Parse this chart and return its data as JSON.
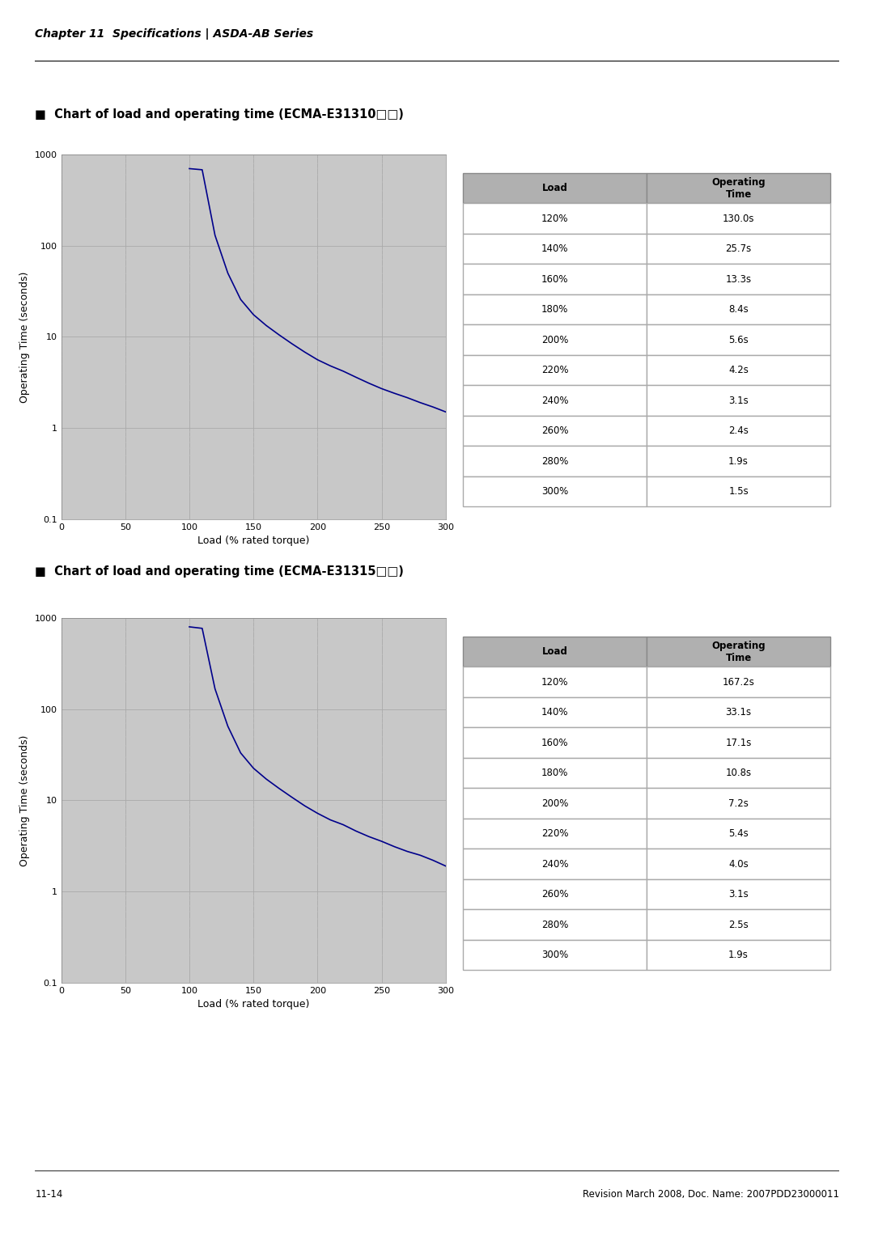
{
  "chapter_header": "Chapter 11  Specifications | ASDA-AB Series",
  "footer_left": "11-14",
  "footer_right": "Revision March 2008, Doc. Name: 2007PDD23000011",
  "chart1_title": "Chart of load and operating time (ECMA-E31310□□)",
  "chart1_xlabel": "Load (% rated torque)",
  "chart1_ylabel": "Operating Time (seconds)",
  "chart1_table_loads": [
    "120%",
    "140%",
    "160%",
    "180%",
    "200%",
    "220%",
    "240%",
    "260%",
    "280%",
    "300%"
  ],
  "chart1_table_times": [
    "130.0s",
    "25.7s",
    "13.3s",
    "8.4s",
    "5.6s",
    "4.2s",
    "3.1s",
    "2.4s",
    "1.9s",
    "1.5s"
  ],
  "chart1_x": [
    100,
    110,
    120,
    130,
    140,
    150,
    160,
    170,
    180,
    190,
    200,
    210,
    220,
    230,
    240,
    250,
    260,
    270,
    280,
    290,
    300
  ],
  "chart1_y": [
    700,
    680,
    130.0,
    50.0,
    25.7,
    17.5,
    13.3,
    10.5,
    8.4,
    6.8,
    5.6,
    4.8,
    4.2,
    3.6,
    3.1,
    2.7,
    2.4,
    2.15,
    1.9,
    1.7,
    1.5
  ],
  "chart2_title": "Chart of load and operating time (ECMA-E31315□□)",
  "chart2_xlabel": "Load (% rated torque)",
  "chart2_ylabel": "Operating Time (seconds)",
  "chart2_table_loads": [
    "120%",
    "140%",
    "160%",
    "180%",
    "200%",
    "220%",
    "240%",
    "260%",
    "280%",
    "300%"
  ],
  "chart2_table_times": [
    "167.2s",
    "33.1s",
    "17.1s",
    "10.8s",
    "7.2s",
    "5.4s",
    "4.0s",
    "3.1s",
    "2.5s",
    "1.9s"
  ],
  "chart2_x": [
    100,
    110,
    120,
    130,
    140,
    150,
    160,
    170,
    180,
    190,
    200,
    210,
    220,
    230,
    240,
    250,
    260,
    270,
    280,
    290,
    300
  ],
  "chart2_y": [
    800,
    770,
    167.2,
    65.0,
    33.1,
    22.5,
    17.1,
    13.5,
    10.8,
    8.7,
    7.2,
    6.1,
    5.4,
    4.6,
    4.0,
    3.55,
    3.1,
    2.75,
    2.5,
    2.2,
    1.9
  ],
  "plot_bg_color": "#c8c8c8",
  "line_color": "#00008B",
  "table_header_bg": "#b0b0b0",
  "table_row_bg": "#ffffff",
  "table_alt_bg": "#e8f4ff",
  "page_bg": "#ffffff",
  "grid_major_color": "#aaaaaa",
  "grid_minor_color": "#cccccc"
}
